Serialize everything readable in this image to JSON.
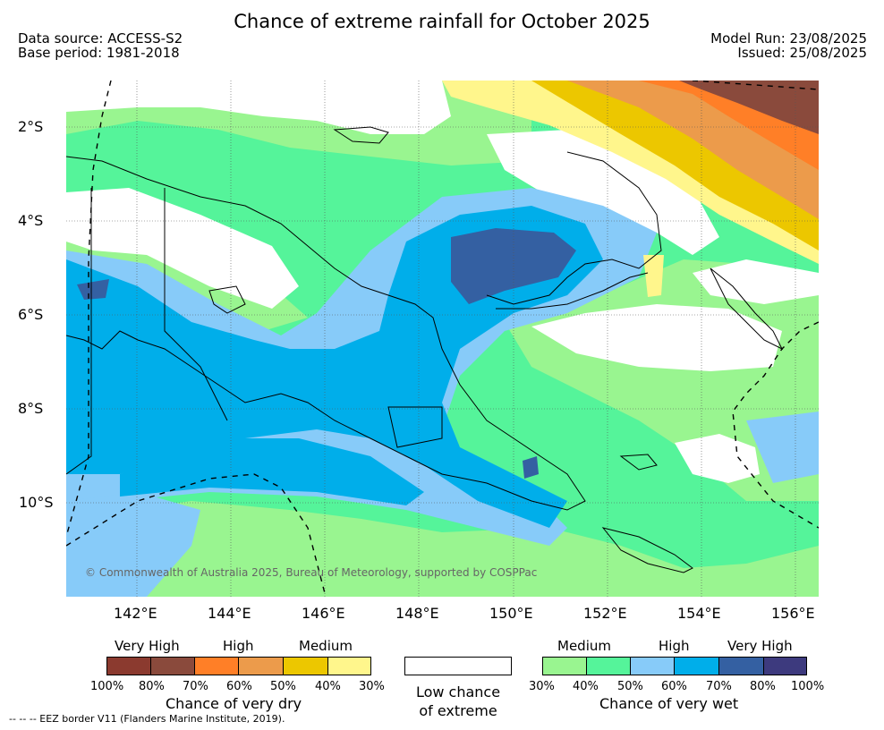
{
  "title": "Chance of extreme rainfall for October 2025",
  "meta": {
    "data_source": "Data source: ACCESS-S2",
    "base_period": "Base period: 1981-2018",
    "model_run": "Model Run: 23/08/2025",
    "issued": "Issued: 25/08/2025"
  },
  "axes": {
    "lat_labels": [
      "2°S",
      "4°S",
      "6°S",
      "8°S",
      "10°S"
    ],
    "lon_labels": [
      "142°E",
      "144°E",
      "146°E",
      "148°E",
      "150°E",
      "152°E",
      "154°E",
      "156°E"
    ]
  },
  "copyright": "© Commonwealth of Australia 2025, Bureau of Meteorology, supported by COSPPac",
  "legend": {
    "dry": {
      "categories": [
        "Very High",
        "High",
        "Medium"
      ],
      "scale": [
        "100%",
        "80%",
        "70%",
        "60%",
        "50%",
        "40%",
        "30%"
      ],
      "colors": [
        "#8b3a2f",
        "#8a4a3c",
        "#ff7f27",
        "#ec9b4b",
        "#ecc700",
        "#fff68c"
      ],
      "caption": "Chance of very dry"
    },
    "neutral": {
      "caption_line1": "Low chance",
      "caption_line2": "of extreme",
      "color": "#ffffff"
    },
    "wet": {
      "categories": [
        "Medium",
        "High",
        "Very High"
      ],
      "scale": [
        "30%",
        "40%",
        "50%",
        "60%",
        "70%",
        "80%",
        "100%"
      ],
      "colors": [
        "#99f590",
        "#55f49a",
        "#87cbf9",
        "#00aeea",
        "#3460a2",
        "#3d3a7e"
      ],
      "caption": "Chance of very wet"
    }
  },
  "footnote": "--  --  -- EEZ border V11 (Flanders Marine Institute, 2019)."
}
